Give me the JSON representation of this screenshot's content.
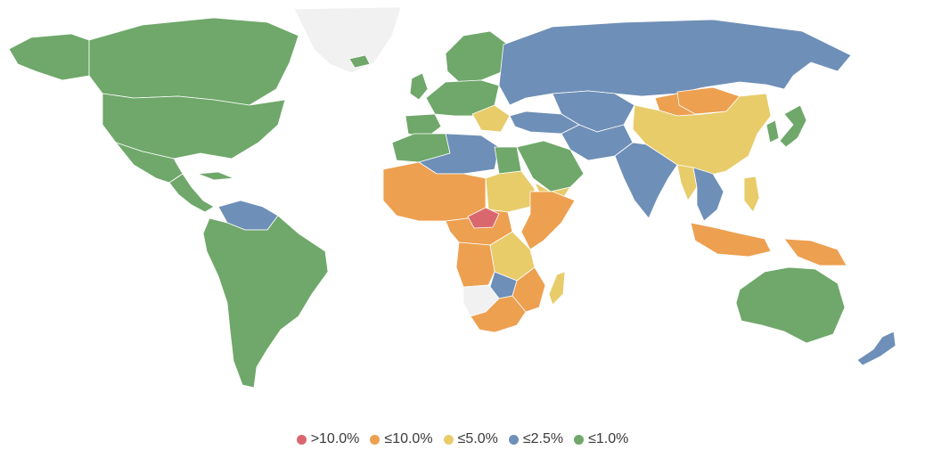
{
  "colors": {
    "gt10": "#d9686e",
    "le10": "#eda050",
    "le5": "#e8cc6a",
    "le25": "#6e8fb7",
    "le1": "#6fa86a",
    "nodata": "#f1f1f1"
  },
  "legend": {
    "items": [
      {
        "key": "gt10",
        "label": ">10.0%",
        "color": "#d9686e"
      },
      {
        "key": "le10",
        "label": "≤10.0%",
        "color": "#eda050"
      },
      {
        "key": "le5",
        "label": "≤5.0%",
        "color": "#e8cc6a"
      },
      {
        "key": "le25",
        "label": "≤2.5%",
        "color": "#6e8fb7"
      },
      {
        "key": "le1",
        "label": "≤1.0%",
        "color": "#6fa86a"
      }
    ]
  },
  "regions": [
    {
      "name": "greenland",
      "category": "nodata"
    },
    {
      "name": "antarctic-gap",
      "category": "nodata"
    },
    {
      "name": "canada",
      "category": "le1"
    },
    {
      "name": "alaska",
      "category": "le1"
    },
    {
      "name": "usa",
      "category": "le1"
    },
    {
      "name": "mexico",
      "category": "le1"
    },
    {
      "name": "central-america",
      "category": "le1"
    },
    {
      "name": "cuba",
      "category": "le1"
    },
    {
      "name": "guianas-venezuela",
      "category": "le25"
    },
    {
      "name": "south-america",
      "category": "le1"
    },
    {
      "name": "iceland",
      "category": "le1"
    },
    {
      "name": "scandinavia",
      "category": "le1"
    },
    {
      "name": "western-europe",
      "category": "le1"
    },
    {
      "name": "iberia",
      "category": "le1"
    },
    {
      "name": "uk",
      "category": "le1"
    },
    {
      "name": "balkans",
      "category": "le5"
    },
    {
      "name": "russia",
      "category": "le25"
    },
    {
      "name": "turkey-caucasus",
      "category": "le25"
    },
    {
      "name": "central-asia",
      "category": "le25"
    },
    {
      "name": "kazakhstan-east",
      "category": "le10"
    },
    {
      "name": "mongolia",
      "category": "le10"
    },
    {
      "name": "china",
      "category": "le5"
    },
    {
      "name": "japan",
      "category": "le1"
    },
    {
      "name": "korea",
      "category": "le1"
    },
    {
      "name": "iran-afghanistan",
      "category": "le25"
    },
    {
      "name": "india",
      "category": "le25"
    },
    {
      "name": "myanmar",
      "category": "le5"
    },
    {
      "name": "indochina",
      "category": "le25"
    },
    {
      "name": "philippines",
      "category": "le5"
    },
    {
      "name": "indonesia",
      "category": "le10"
    },
    {
      "name": "papua",
      "category": "le10"
    },
    {
      "name": "arabia",
      "category": "le1"
    },
    {
      "name": "yemen",
      "category": "le5"
    },
    {
      "name": "maghreb",
      "category": "le1"
    },
    {
      "name": "algeria-libya",
      "category": "le25"
    },
    {
      "name": "egypt",
      "category": "le1"
    },
    {
      "name": "west-africa",
      "category": "le10"
    },
    {
      "name": "sahel-east",
      "category": "le5"
    },
    {
      "name": "central-african-republic",
      "category": "le10"
    },
    {
      "name": "car-hotspot",
      "category": "gt10"
    },
    {
      "name": "horn-of-africa",
      "category": "le10"
    },
    {
      "name": "great-lakes",
      "category": "le5"
    },
    {
      "name": "angola",
      "category": "le10"
    },
    {
      "name": "zambia",
      "category": "le25"
    },
    {
      "name": "mozambique-tanzania",
      "category": "le10"
    },
    {
      "name": "namibia",
      "category": "nodata"
    },
    {
      "name": "south-africa",
      "category": "le10"
    },
    {
      "name": "madagascar",
      "category": "le5"
    },
    {
      "name": "australia",
      "category": "le1"
    },
    {
      "name": "new-zealand",
      "category": "le25"
    }
  ]
}
